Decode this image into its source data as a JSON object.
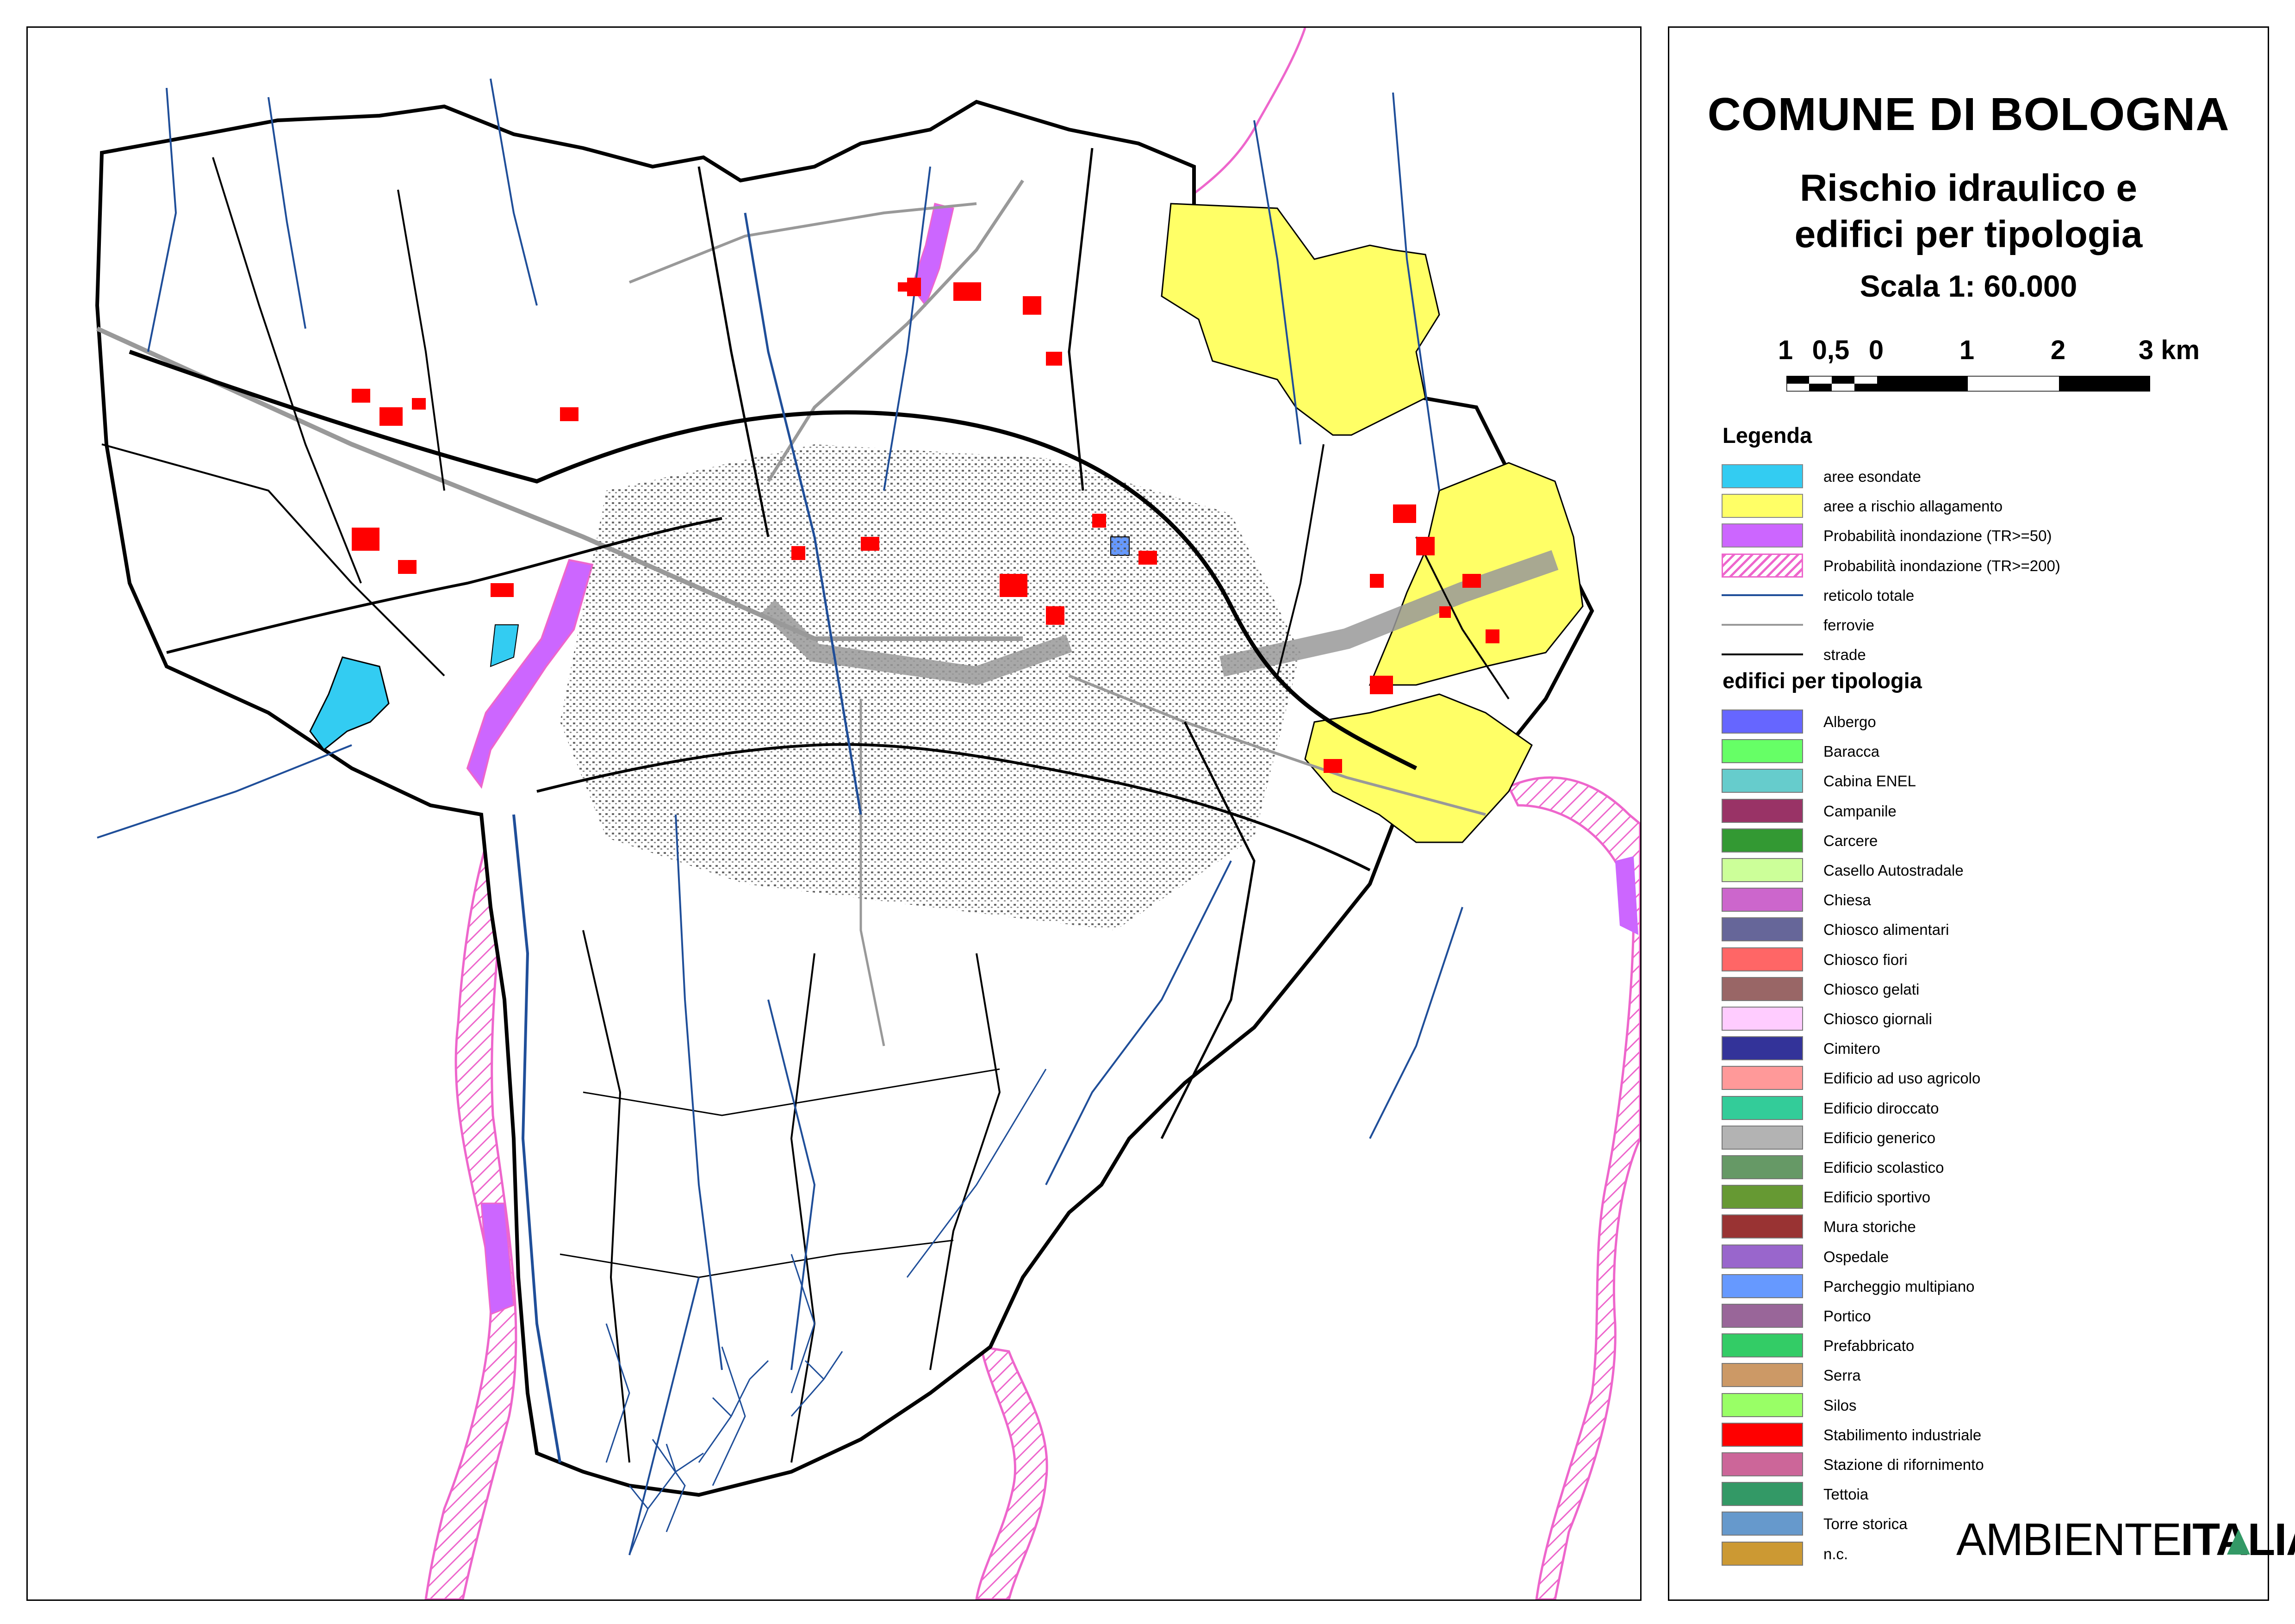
{
  "map": {
    "colors": {
      "flood_area": "#33ccf2",
      "flood_risk": "#ffff66",
      "tr50": "#cc66ff",
      "tr200": "#ee66cc",
      "rivers": "#1f4e99",
      "railways": "#999999",
      "roads": "#000000",
      "industrial": "#ff0000"
    }
  },
  "legend": {
    "title": "COMUNE DI BOLOGNA",
    "subtitle_line1": "Rischio idraulico e",
    "subtitle_line2": "edifici per tipologia",
    "scale": "Scala 1: 60.000",
    "scalebar_ticks": [
      "1",
      "0,5",
      "0",
      "1",
      "2",
      "3 km"
    ],
    "legenda_heading": "Legenda",
    "items": [
      {
        "label": "aree esondate",
        "color": "#33ccf2",
        "kind": "fill"
      },
      {
        "label": "aree a rischio allagamento",
        "color": "#ffff66",
        "kind": "fill"
      },
      {
        "label": "Probabilità inondazione (TR>=50)",
        "color": "#cc66ff",
        "kind": "fill"
      },
      {
        "label": "Probabilità inondazione (TR>=200)",
        "color": "#ee66cc",
        "kind": "hatch"
      },
      {
        "label": "reticolo totale",
        "color": "#1f4e99",
        "kind": "line"
      },
      {
        "label": "ferrovie",
        "color": "#999999",
        "kind": "line"
      },
      {
        "label": "strade",
        "color": "#000000",
        "kind": "line"
      }
    ],
    "types_heading": "edifici per tipologia",
    "building_types": [
      {
        "label": "Albergo",
        "color": "#6666ff"
      },
      {
        "label": "Baracca",
        "color": "#66ff66"
      },
      {
        "label": "Cabina ENEL",
        "color": "#66cccc"
      },
      {
        "label": "Campanile",
        "color": "#993366"
      },
      {
        "label": "Carcere",
        "color": "#339933"
      },
      {
        "label": "Casello Autostradale",
        "color": "#ccff99"
      },
      {
        "label": "Chiesa",
        "color": "#cc66cc"
      },
      {
        "label": "Chiosco alimentari",
        "color": "#666699"
      },
      {
        "label": "Chiosco fiori",
        "color": "#ff6666"
      },
      {
        "label": "Chiosco gelati",
        "color": "#996666"
      },
      {
        "label": "Chiosco giornali",
        "color": "#ffccff"
      },
      {
        "label": "Cimitero",
        "color": "#333399"
      },
      {
        "label": "Edificio ad uso agricolo",
        "color": "#ff9999"
      },
      {
        "label": "Edificio diroccato",
        "color": "#33cc99"
      },
      {
        "label": "Edificio generico",
        "color": "#b3b3b3"
      },
      {
        "label": "Edificio scolastico",
        "color": "#669966"
      },
      {
        "label": "Edificio sportivo",
        "color": "#669933"
      },
      {
        "label": "Mura storiche",
        "color": "#993333"
      },
      {
        "label": "Ospedale",
        "color": "#9966cc"
      },
      {
        "label": "Parcheggio multipiano",
        "color": "#6699ff"
      },
      {
        "label": "Portico",
        "color": "#996699"
      },
      {
        "label": "Prefabbricato",
        "color": "#33cc66"
      },
      {
        "label": "Serra",
        "color": "#cc9966"
      },
      {
        "label": "Silos",
        "color": "#99ff66"
      },
      {
        "label": "Stabilimento industriale",
        "color": "#ff0000"
      },
      {
        "label": "Stazione di rifornimento",
        "color": "#cc6699"
      },
      {
        "label": "Tettoia",
        "color": "#339966"
      },
      {
        "label": "Torre storica",
        "color": "#6699cc"
      },
      {
        "label": "n.c.",
        "color": "#cc9933"
      }
    ]
  },
  "logo": {
    "part1": "AMBIENTE",
    "part2": "ITALIA"
  }
}
